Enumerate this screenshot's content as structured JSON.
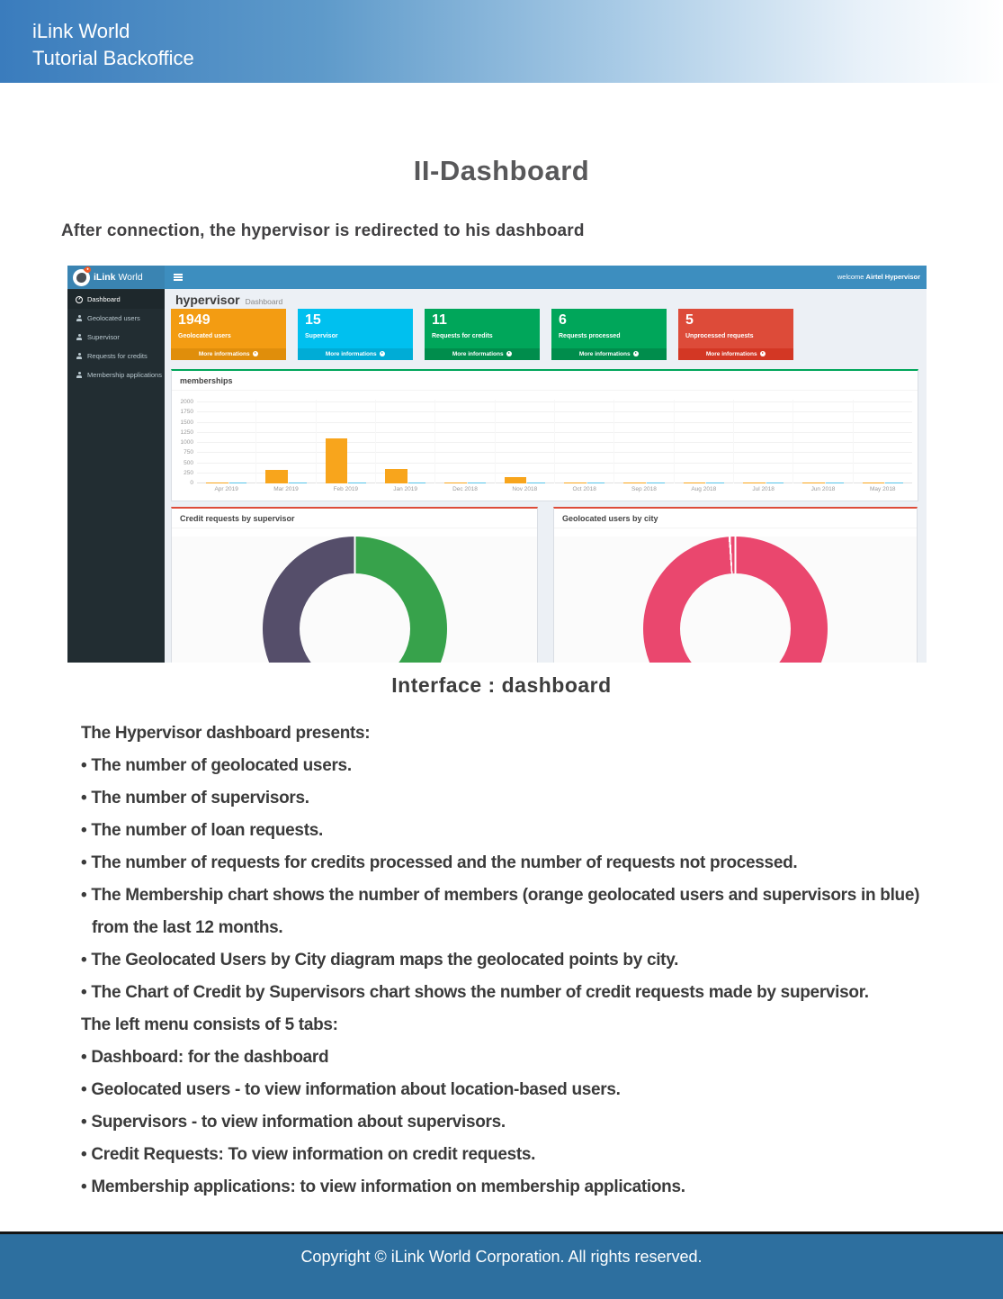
{
  "header": {
    "line1": "iLink World",
    "line2": "Tutorial Backoffice"
  },
  "title": "II-Dashboard",
  "subtitle": "After connection, the hypervisor is redirected to his dashboard",
  "caption": "Interface : dashboard",
  "footer": {
    "text": "Copyright © iLink World Corporation. All rights reserved."
  },
  "colors": {
    "navbar": "#3d8ebf",
    "logo_area": "#3a84b2",
    "sidebar": "#222d32",
    "sidebar_active": "#1e282c",
    "content_bg": "#ecf0f5",
    "memberships_accent": "#00a65a",
    "donut_panel_accent": "#dd4b39",
    "header_gradient_start": "#3a7cbd",
    "footer_bg": "#2d6f9f"
  },
  "screenshot": {
    "navbar": {
      "brand_bold": "iLink",
      "brand_light": "World",
      "welcome_prefix": "welcome",
      "welcome_user": "Airtel Hypervisor"
    },
    "sidebar": {
      "items": [
        {
          "label": "Dashboard",
          "icon": "gauge-icon",
          "active": true
        },
        {
          "label": "Geolocated users",
          "icon": "users-icon",
          "active": false
        },
        {
          "label": "Supervisor",
          "icon": "users-icon",
          "active": false
        },
        {
          "label": "Requests for credits",
          "icon": "users-icon",
          "active": false
        },
        {
          "label": "Membership applications",
          "icon": "users-icon",
          "active": false
        }
      ]
    },
    "page_heading": {
      "title": "hypervisor",
      "subtitle": "Dashboard"
    },
    "stat_cards": [
      {
        "value": "1949",
        "label": "Geolocated users",
        "more_label": "More informations",
        "color": "#f39c12",
        "footer_color": "#e08e0b"
      },
      {
        "value": "15",
        "label": "Supervisor",
        "more_label": "More informations",
        "color": "#00c0ef",
        "footer_color": "#00acd6"
      },
      {
        "value": "11",
        "label": "Requests for credits",
        "more_label": "More informations",
        "color": "#00a65a",
        "footer_color": "#008d4c"
      },
      {
        "value": "6",
        "label": "Requests processed",
        "more_label": "More informations",
        "color": "#00a65a",
        "footer_color": "#008d4c"
      },
      {
        "value": "5",
        "label": "Unprocessed requests",
        "more_label": "More informations",
        "color": "#dd4b39",
        "footer_color": "#d33724"
      }
    ]
  },
  "chart_data": [
    {
      "type": "bar",
      "title": "memberships",
      "categories": [
        "Apr 2019",
        "Mar 2019",
        "Feb 2019",
        "Jan 2019",
        "Dec 2018",
        "Nov 2018",
        "Oct 2018",
        "Sep 2018",
        "Aug 2018",
        "Jul 2018",
        "Jun 2018",
        "May 2018"
      ],
      "series": [
        {
          "name": "geolocated users",
          "color": "#f8a51c",
          "values": [
            20,
            330,
            1120,
            350,
            20,
            160,
            20,
            20,
            20,
            25,
            25,
            25
          ]
        },
        {
          "name": "supervisors",
          "color": "#55c3e8",
          "values": [
            15,
            15,
            15,
            25,
            15,
            15,
            15,
            15,
            15,
            15,
            15,
            15
          ]
        }
      ],
      "ylim": [
        0,
        2000
      ],
      "yticks": [
        0,
        250,
        500,
        750,
        1000,
        1250,
        1500,
        1750,
        2000
      ],
      "grid": true,
      "legend": "none"
    },
    {
      "type": "pie",
      "title": "Credit requests by supervisor",
      "slices": [
        {
          "value": 50,
          "color": "#37a24b"
        },
        {
          "value": 50,
          "color": "#554e6a"
        }
      ]
    },
    {
      "type": "pie",
      "title": "Geolocated users by city",
      "slices": [
        {
          "value": 99,
          "color": "#ea476e"
        },
        {
          "value": 1,
          "color": "#ea476e"
        }
      ]
    }
  ],
  "body_lines": [
    {
      "text": "The Hypervisor dashboard presents:",
      "indent": 0
    },
    {
      "text": "• The number of geolocated users.",
      "indent": 0
    },
    {
      "text": "• The number of supervisors.",
      "indent": 0
    },
    {
      "text": "• The number of loan requests.",
      "indent": 0
    },
    {
      "text": "• The number of requests for credits processed and the number of requests not processed.",
      "indent": 0
    },
    {
      "text": "• The Membership chart shows the number of members (orange geolocated users and supervisors in blue)",
      "indent": 0
    },
    {
      "text": "from the last 12 months.",
      "indent": 1
    },
    {
      "text": "• The Geolocated Users by City diagram maps the geolocated points by city.",
      "indent": 0
    },
    {
      "text": "• The Chart of Credit by Supervisors chart shows the number of credit requests made by supervisor.",
      "indent": 0
    },
    {
      "text": "The left menu consists of 5 tabs:",
      "indent": 0
    },
    {
      "text": "• Dashboard: for the dashboard",
      "indent": 0
    },
    {
      "text": "• Geolocated users - to view information about location-based users.",
      "indent": 0
    },
    {
      "text": "• Supervisors - to view information about supervisors.",
      "indent": 0
    },
    {
      "text": "• Credit Requests: To view information on credit requests.",
      "indent": 0
    },
    {
      "text": "• Membership applications: to view information on membership applications.",
      "indent": 0
    }
  ]
}
